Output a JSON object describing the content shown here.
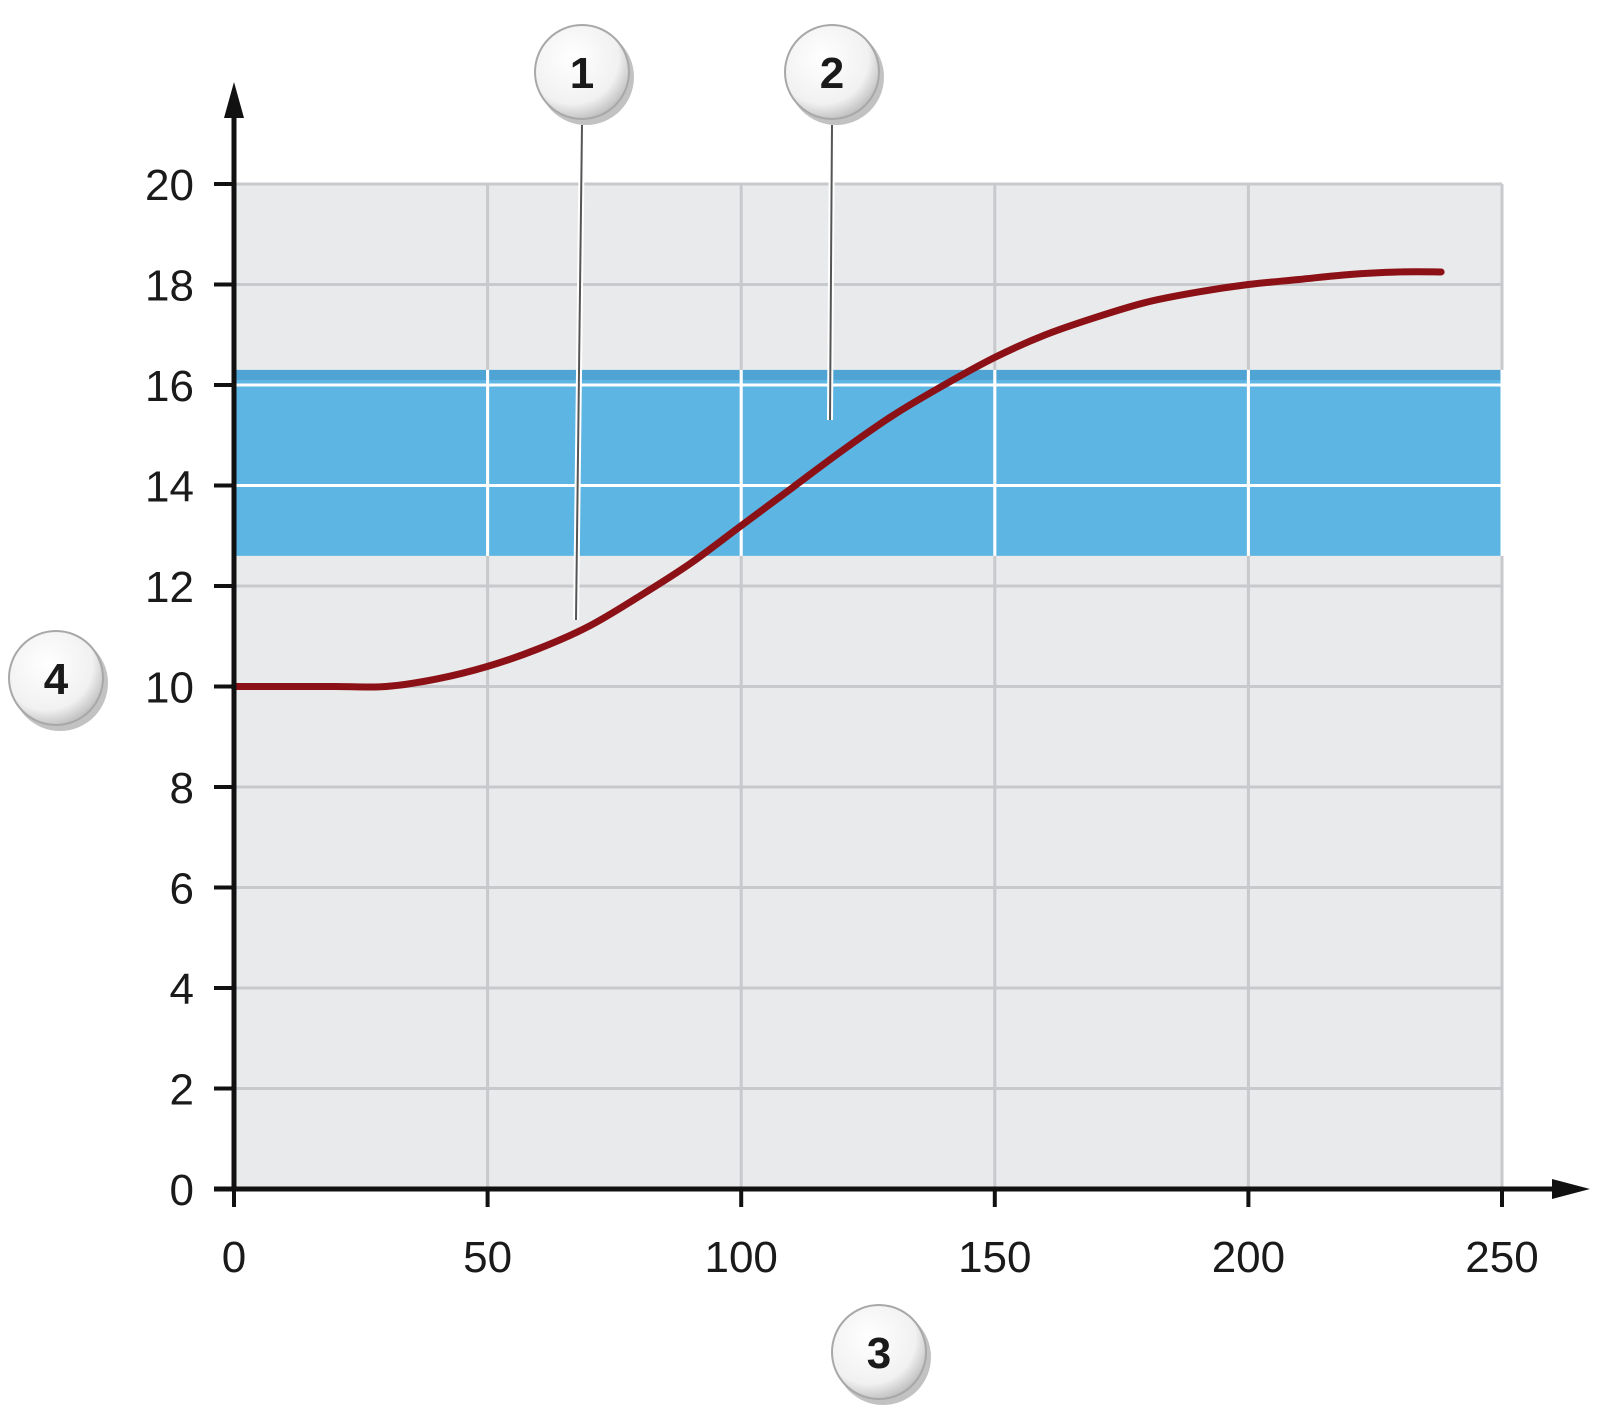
{
  "colors": {
    "plot_background": "#e9eaec",
    "gridline": "#c8c9cc",
    "band_fill": "#5cb5e3",
    "band_edge": "#4a9ccc",
    "curve": "#8b1116",
    "axis": "#111111",
    "callout_fill": "#f1f1f1"
  },
  "chart_data": {
    "type": "line",
    "title": "",
    "xlabel": "",
    "ylabel": "",
    "xlim": [
      0,
      250
    ],
    "ylim": [
      0,
      20
    ],
    "x_ticks": [
      "0",
      "50",
      "100",
      "150",
      "200",
      "250"
    ],
    "y_ticks": [
      "0",
      "2",
      "4",
      "6",
      "8",
      "10",
      "12",
      "14",
      "16",
      "18",
      "20"
    ],
    "grid": true,
    "band": {
      "ymin": 12.6,
      "ymax": 16.3
    },
    "series": [
      {
        "x": [
          0,
          10,
          20,
          30,
          40,
          50,
          60,
          70,
          80,
          90,
          100,
          110,
          120,
          130,
          140,
          150,
          160,
          170,
          180,
          190,
          200,
          210,
          220,
          230,
          238
        ],
        "y": [
          10.0,
          10.0,
          10.0,
          10.0,
          10.15,
          10.4,
          10.75,
          11.2,
          11.8,
          12.45,
          13.2,
          13.95,
          14.7,
          15.4,
          16.0,
          16.55,
          17.0,
          17.35,
          17.65,
          17.85,
          18.0,
          18.1,
          18.2,
          18.25,
          18.25
        ]
      }
    ]
  },
  "callouts": [
    {
      "label": "1"
    },
    {
      "label": "2"
    },
    {
      "label": "3"
    },
    {
      "label": "4"
    }
  ]
}
